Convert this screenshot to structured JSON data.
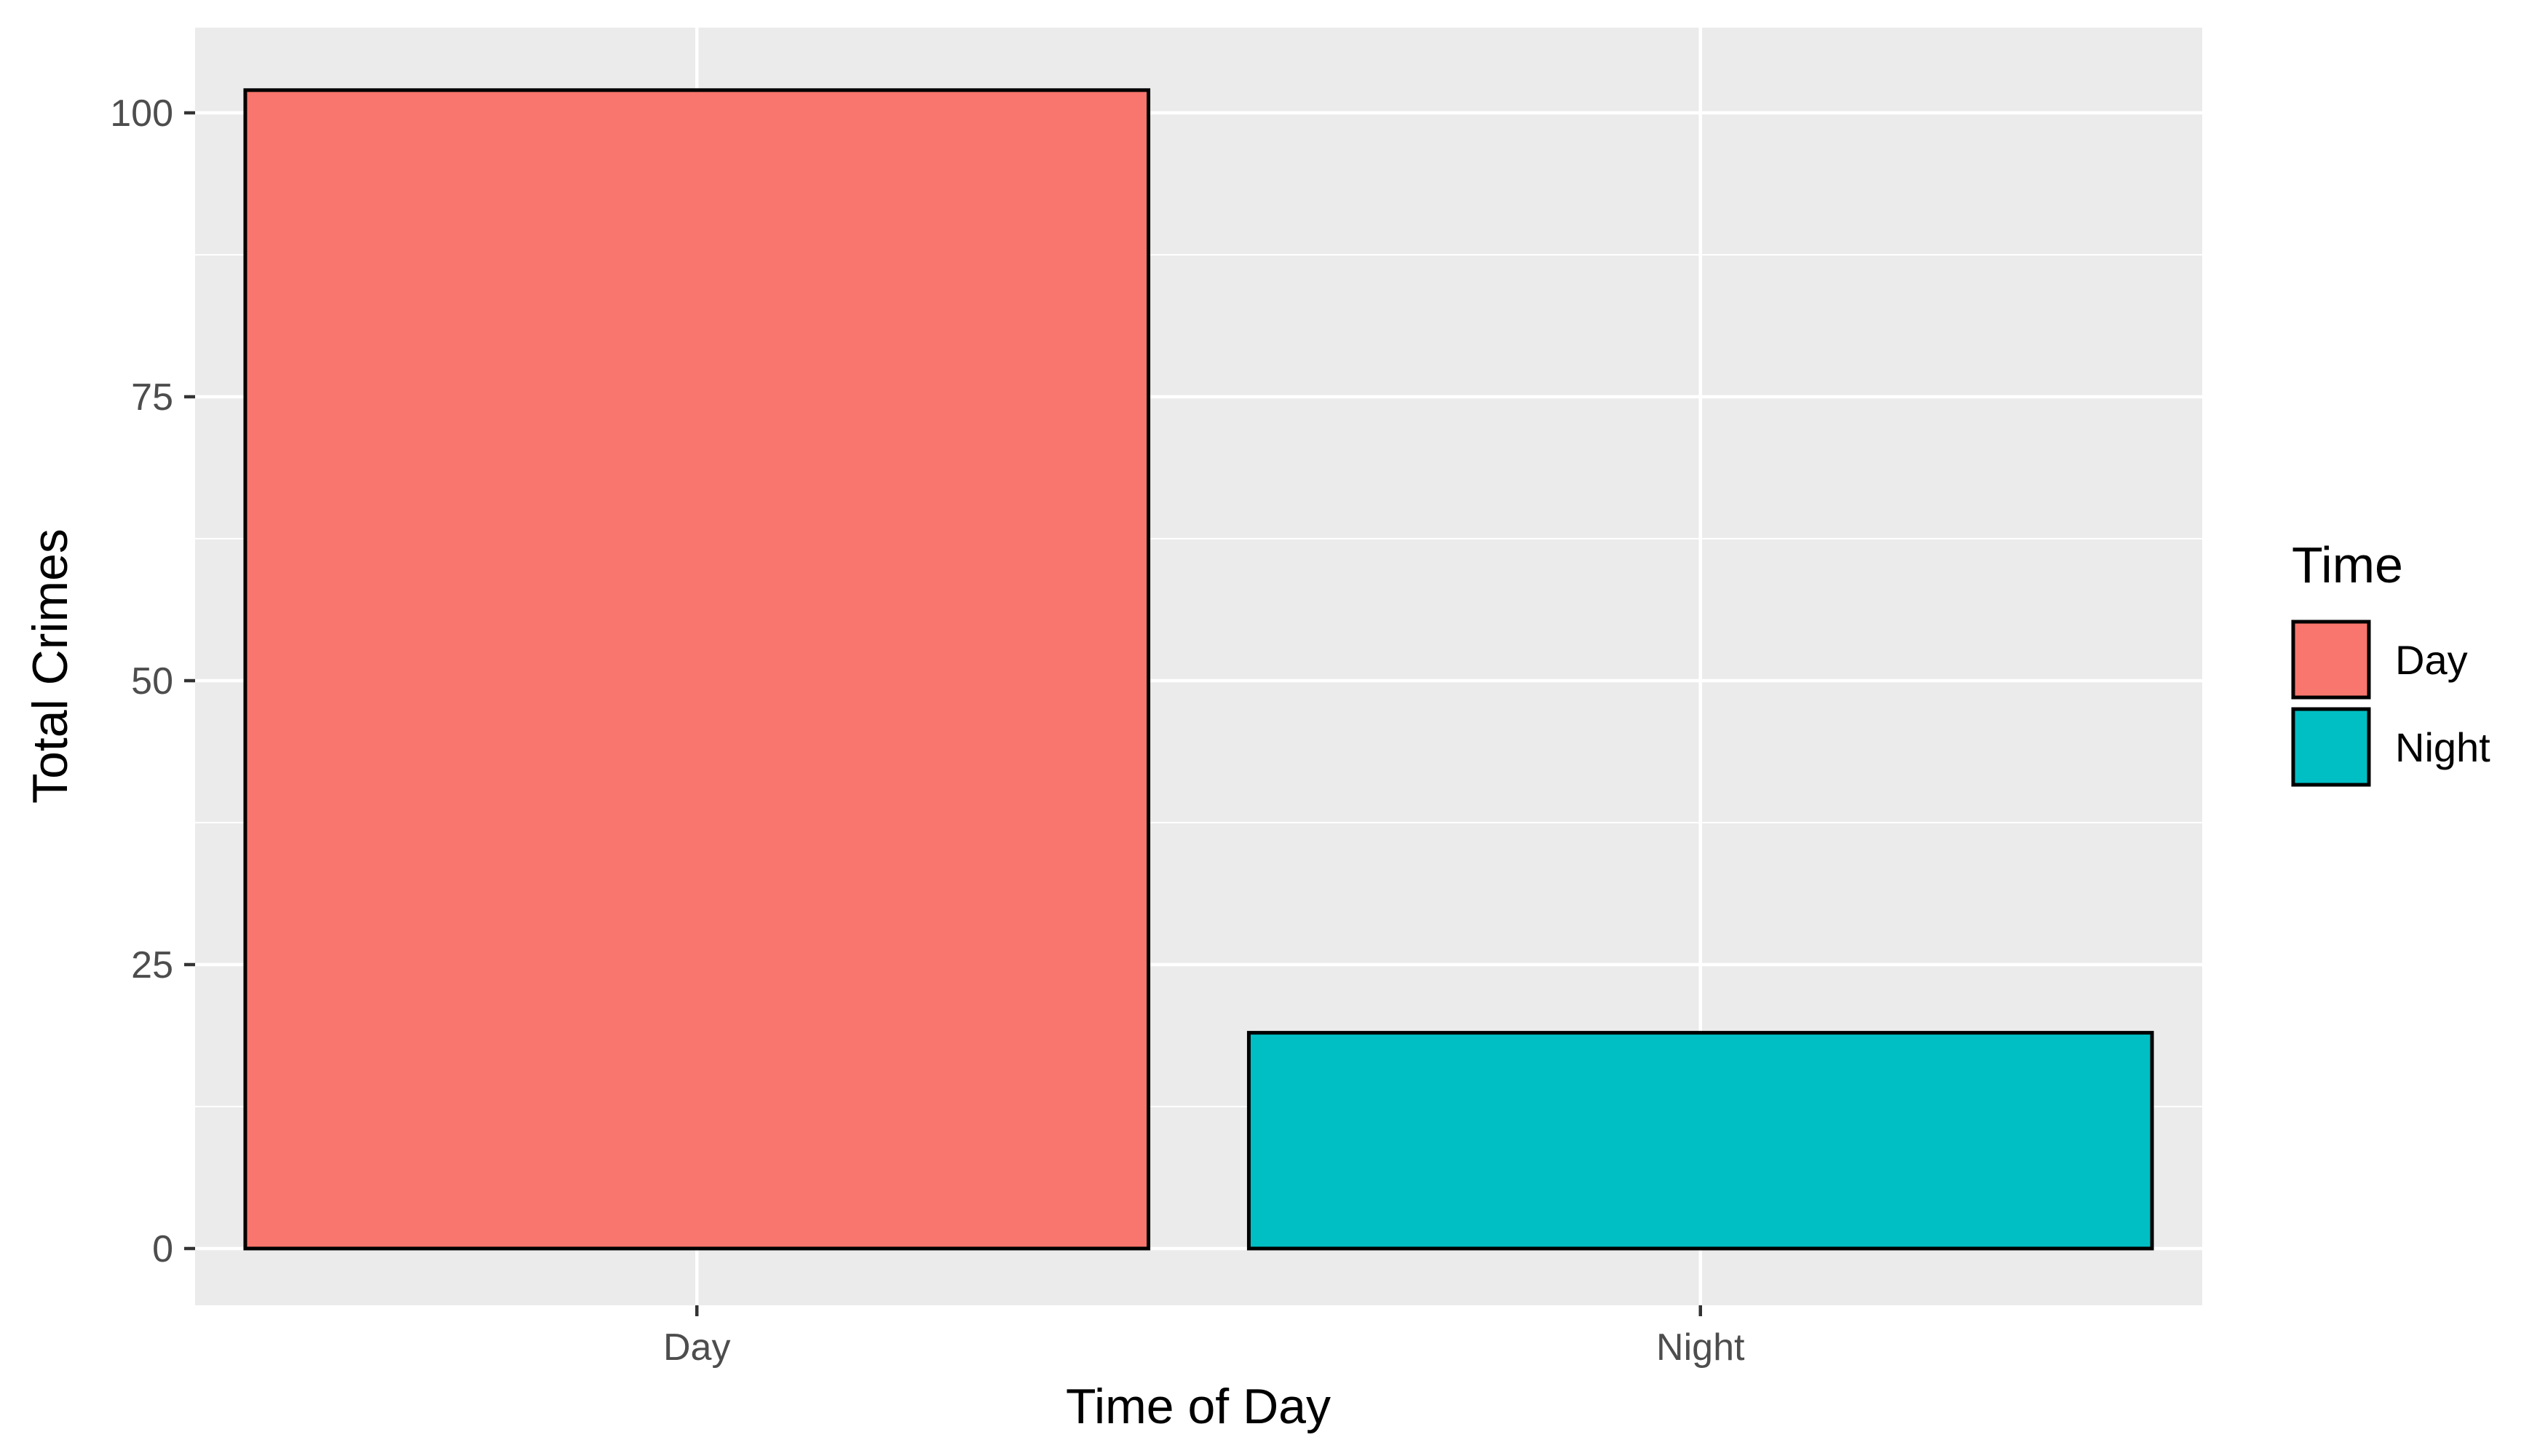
{
  "chart_data": {
    "type": "bar",
    "categories": [
      "Day",
      "Night"
    ],
    "values": [
      102,
      19
    ],
    "xlabel": "Time of Day",
    "ylabel": "Total Crimes",
    "ylim": [
      -5,
      107.5
    ],
    "yticks": [
      0,
      25,
      50,
      75,
      100
    ],
    "grid": true,
    "legend": {
      "title": "Time",
      "placement": "right",
      "entries": [
        "Day",
        "Night"
      ]
    },
    "colors": {
      "Day": "#F8766D",
      "Night": "#00BFC4",
      "panel_background": "#EBEBEB",
      "grid": "#FFFFFF",
      "bar_outline": "#000000"
    }
  }
}
